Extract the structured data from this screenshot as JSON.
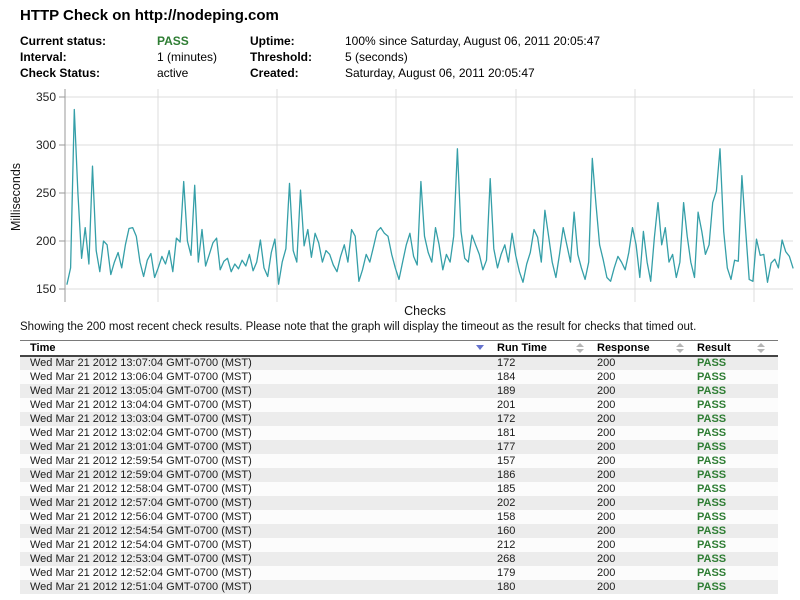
{
  "page": {
    "title": "HTTP Check on http://nodeping.com"
  },
  "status": {
    "rows": [
      {
        "l1": "Current status:",
        "v1": "PASS",
        "l2": "Uptime:",
        "v2": "100% since Saturday, August 06, 2011 20:05:47"
      },
      {
        "l1": "Interval:",
        "v1": "1 (minutes)",
        "l2": "Threshold:",
        "v2": "5 (seconds)"
      },
      {
        "l1": "Check Status:",
        "v1": "active",
        "l2": "Created:",
        "v2": "Saturday, August 06, 2011 20:05:47"
      }
    ]
  },
  "chart_data": {
    "type": "line",
    "title": "",
    "xlabel": "Checks",
    "ylabel": "Milliseconds",
    "x_range": [
      1,
      200
    ],
    "ylim": [
      135,
      355
    ],
    "yticks": [
      150,
      200,
      250,
      300,
      350
    ],
    "grid": true,
    "legend": false,
    "line_color": "#359fa8",
    "values": [
      155,
      172,
      337,
      250,
      182,
      214,
      176,
      278,
      190,
      168,
      200,
      196,
      165,
      178,
      188,
      172,
      196,
      213,
      214,
      205,
      178,
      163,
      180,
      187,
      162,
      172,
      184,
      176,
      190,
      168,
      203,
      199,
      262,
      200,
      185,
      258,
      178,
      212,
      174,
      186,
      198,
      203,
      170,
      179,
      182,
      168,
      176,
      171,
      180,
      174,
      186,
      169,
      178,
      201,
      172,
      163,
      188,
      202,
      155,
      178,
      192,
      260,
      190,
      178,
      253,
      195,
      212,
      183,
      208,
      198,
      178,
      190,
      186,
      175,
      168,
      184,
      196,
      178,
      212,
      205,
      158,
      170,
      186,
      178,
      194,
      210,
      214,
      208,
      205,
      186,
      172,
      160,
      178,
      196,
      208,
      184,
      175,
      262,
      205,
      188,
      178,
      214,
      196,
      170,
      186,
      178,
      205,
      296,
      210,
      182,
      178,
      206,
      196,
      186,
      170,
      180,
      265,
      192,
      172,
      186,
      196,
      178,
      208,
      185,
      168,
      157,
      176,
      188,
      212,
      204,
      178,
      232,
      205,
      178,
      162,
      186,
      214,
      196,
      178,
      230,
      186,
      172,
      160,
      178,
      286,
      238,
      196,
      180,
      162,
      158,
      172,
      184,
      178,
      170,
      188,
      214,
      196,
      162,
      210,
      178,
      158,
      204,
      240,
      196,
      214,
      178,
      186,
      162,
      178,
      240,
      205,
      178,
      162,
      230,
      210,
      186,
      196,
      240,
      252,
      296,
      210,
      172,
      160,
      180,
      179,
      268,
      212,
      160,
      158,
      202,
      185,
      186,
      157,
      177,
      181,
      172,
      201,
      189,
      184,
      172
    ]
  },
  "note": "Showing the 200 most recent check results. Please note that the graph will display the timeout as the result for checks that timed out.",
  "table": {
    "columns": [
      {
        "label": "Time",
        "sort": "desc"
      },
      {
        "label": "Run Time",
        "sort": "none"
      },
      {
        "label": "Response",
        "sort": "none"
      },
      {
        "label": "Result",
        "sort": "none"
      }
    ],
    "rows": [
      {
        "time": "Wed Mar 21 2012 13:07:04 GMT-0700 (MST)",
        "run_time": "172",
        "response": "200",
        "result": "PASS"
      },
      {
        "time": "Wed Mar 21 2012 13:06:04 GMT-0700 (MST)",
        "run_time": "184",
        "response": "200",
        "result": "PASS"
      },
      {
        "time": "Wed Mar 21 2012 13:05:04 GMT-0700 (MST)",
        "run_time": "189",
        "response": "200",
        "result": "PASS"
      },
      {
        "time": "Wed Mar 21 2012 13:04:04 GMT-0700 (MST)",
        "run_time": "201",
        "response": "200",
        "result": "PASS"
      },
      {
        "time": "Wed Mar 21 2012 13:03:04 GMT-0700 (MST)",
        "run_time": "172",
        "response": "200",
        "result": "PASS"
      },
      {
        "time": "Wed Mar 21 2012 13:02:04 GMT-0700 (MST)",
        "run_time": "181",
        "response": "200",
        "result": "PASS"
      },
      {
        "time": "Wed Mar 21 2012 13:01:04 GMT-0700 (MST)",
        "run_time": "177",
        "response": "200",
        "result": "PASS"
      },
      {
        "time": "Wed Mar 21 2012 12:59:54 GMT-0700 (MST)",
        "run_time": "157",
        "response": "200",
        "result": "PASS"
      },
      {
        "time": "Wed Mar 21 2012 12:59:04 GMT-0700 (MST)",
        "run_time": "186",
        "response": "200",
        "result": "PASS"
      },
      {
        "time": "Wed Mar 21 2012 12:58:04 GMT-0700 (MST)",
        "run_time": "185",
        "response": "200",
        "result": "PASS"
      },
      {
        "time": "Wed Mar 21 2012 12:57:04 GMT-0700 (MST)",
        "run_time": "202",
        "response": "200",
        "result": "PASS"
      },
      {
        "time": "Wed Mar 21 2012 12:56:04 GMT-0700 (MST)",
        "run_time": "158",
        "response": "200",
        "result": "PASS"
      },
      {
        "time": "Wed Mar 21 2012 12:54:54 GMT-0700 (MST)",
        "run_time": "160",
        "response": "200",
        "result": "PASS"
      },
      {
        "time": "Wed Mar 21 2012 12:54:04 GMT-0700 (MST)",
        "run_time": "212",
        "response": "200",
        "result": "PASS"
      },
      {
        "time": "Wed Mar 21 2012 12:53:04 GMT-0700 (MST)",
        "run_time": "268",
        "response": "200",
        "result": "PASS"
      },
      {
        "time": "Wed Mar 21 2012 12:52:04 GMT-0700 (MST)",
        "run_time": "179",
        "response": "200",
        "result": "PASS"
      },
      {
        "time": "Wed Mar 21 2012 12:51:04 GMT-0700 (MST)",
        "run_time": "180",
        "response": "200",
        "result": "PASS"
      }
    ]
  },
  "colors": {
    "pass_green": "#2e7d33",
    "line_teal": "#359fa8",
    "sort_active": "#6673cf",
    "sort_inactive": "#b5b5b5",
    "gridline": "#dcdcdc",
    "axis": "#9a9a9a"
  }
}
